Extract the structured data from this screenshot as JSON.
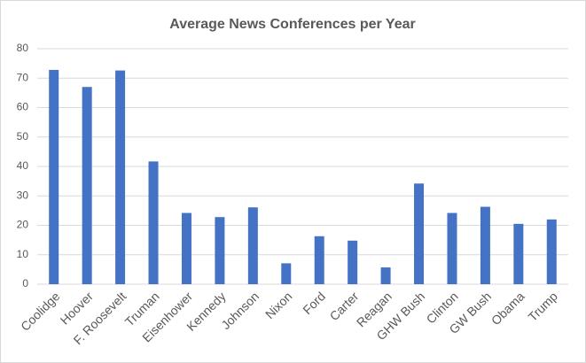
{
  "chart_data": {
    "type": "bar",
    "title": "Average News Conferences per Year",
    "categories": [
      "Coolidge",
      "Hoover",
      "F. Roosevelt",
      "Truman",
      "Eisenhower",
      "Kennedy",
      "Johnson",
      "Nixon",
      "Ford",
      "Carter",
      "Reagan",
      "GHW Bush",
      "Clinton",
      "GW Bush",
      "Obama",
      "Trump"
    ],
    "values": [
      72.8,
      67,
      72.6,
      41.7,
      24.2,
      22.8,
      26.1,
      7.1,
      16.3,
      14.8,
      5.7,
      34.2,
      24.2,
      26.3,
      20.5,
      22
    ],
    "color": "#4472c4",
    "ylim": [
      0,
      80
    ],
    "yticks": [
      0,
      10,
      20,
      30,
      40,
      50,
      60,
      70,
      80
    ],
    "grid": true
  }
}
